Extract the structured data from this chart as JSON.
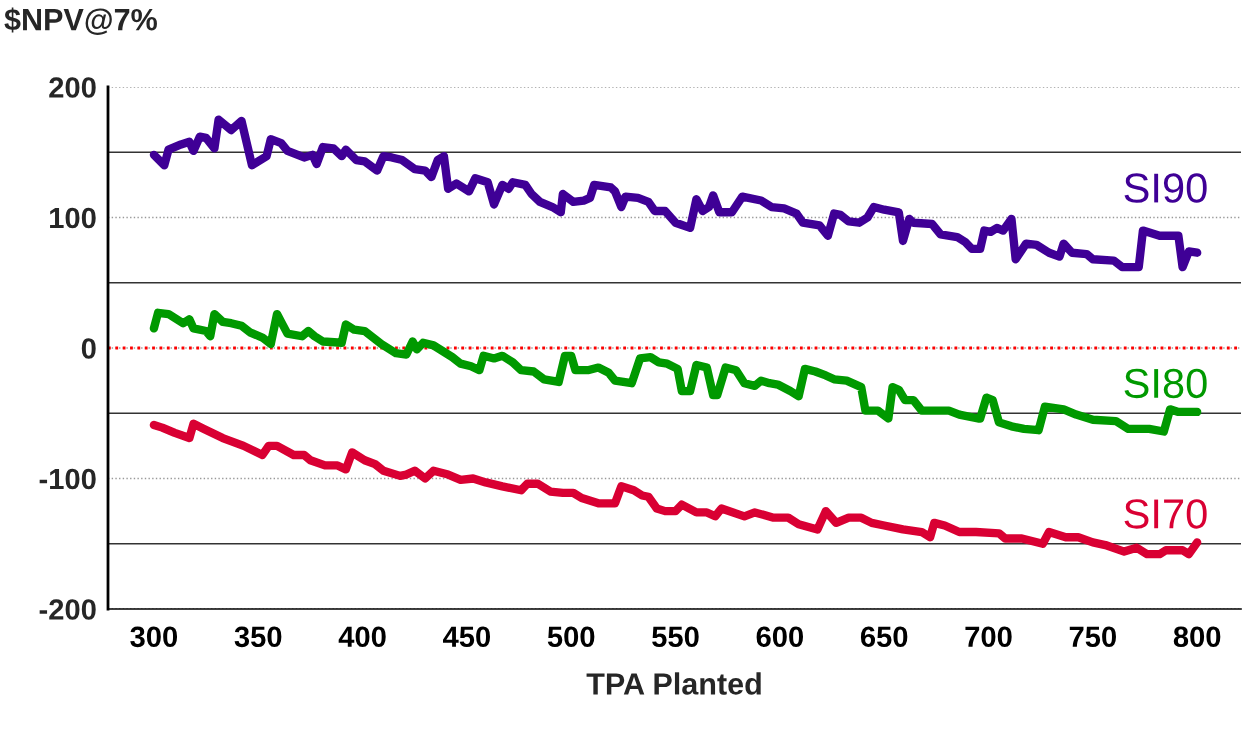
{
  "chart_data": {
    "type": "line",
    "xlabel": "TPA Planted",
    "ylabel": "$NPV@7%",
    "xlim": [
      278,
      821
    ],
    "ylim": [
      -200,
      200
    ],
    "xticks": [
      300,
      350,
      400,
      450,
      500,
      550,
      600,
      650,
      700,
      750,
      800
    ],
    "yticks": [
      -200,
      -100,
      0,
      100,
      200
    ],
    "grid": "y",
    "legend": false,
    "marker": "none",
    "line_style": "solid",
    "ref_lines": [
      {
        "axis": "y",
        "value": 150,
        "color": "#333333",
        "line_style": "solid"
      },
      {
        "axis": "y",
        "value": 50,
        "color": "#333333",
        "line_style": "solid"
      },
      {
        "axis": "y",
        "value": -50,
        "color": "#333333",
        "line_style": "solid"
      },
      {
        "axis": "y",
        "value": -150,
        "color": "#333333",
        "line_style": "solid"
      },
      {
        "axis": "y",
        "value": 0,
        "color": "#ff0000",
        "line_style": "dotted"
      }
    ],
    "series": [
      {
        "name": "SI90",
        "color": "#3f0096",
        "x": [
          300,
          305,
          307,
          313,
          317,
          319,
          322,
          325,
          329,
          331,
          337,
          342,
          347,
          354,
          356,
          361,
          364,
          372,
          376,
          378,
          381,
          386,
          390,
          392,
          397,
          401,
          407,
          410,
          414,
          419,
          425,
          430,
          433,
          436,
          439,
          441,
          445,
          451,
          454,
          460,
          463,
          467,
          470,
          472,
          478,
          481,
          485,
          491,
          495,
          496,
          501,
          506,
          509,
          511,
          519,
          521,
          524,
          526,
          532,
          537,
          540,
          545,
          550,
          557,
          560,
          563,
          566,
          568,
          571,
          577,
          582,
          591,
          596,
          602,
          608,
          611,
          619,
          623,
          626,
          629,
          633,
          638,
          642,
          645,
          650,
          657,
          659,
          662,
          664,
          673,
          677,
          685,
          689,
          692,
          696,
          698,
          701,
          704,
          707,
          711,
          713,
          718,
          723,
          729,
          734,
          736,
          740,
          747,
          750,
          760,
          764,
          772,
          774,
          782,
          791,
          793,
          796,
          800
        ],
        "values": [
          148,
          140,
          152,
          156,
          158,
          151,
          162,
          161,
          153,
          175,
          167,
          174,
          140,
          147,
          160,
          157,
          151,
          146,
          148,
          141,
          154,
          153,
          147,
          152,
          144,
          143,
          136,
          147,
          146,
          144,
          137,
          136,
          131,
          144,
          147,
          122,
          126,
          120,
          130,
          127,
          110,
          125,
          122,
          127,
          125,
          118,
          112,
          108,
          104,
          118,
          112,
          113,
          115,
          125,
          123,
          120,
          108,
          116,
          115,
          112,
          105,
          105,
          96,
          92,
          114,
          105,
          108,
          117,
          104,
          104,
          116,
          113,
          108,
          107,
          103,
          96,
          94,
          86,
          103,
          102,
          97,
          96,
          100,
          108,
          106,
          104,
          82,
          99,
          96,
          95,
          87,
          85,
          81,
          76,
          76,
          90,
          89,
          92,
          90,
          99,
          68,
          80,
          79,
          73,
          70,
          80,
          73,
          72,
          68,
          67,
          62,
          62,
          90,
          86,
          86,
          62,
          74,
          73
        ]
      },
      {
        "name": "SI80",
        "color": "#009900",
        "x": [
          300,
          302,
          307,
          314,
          317,
          319,
          325,
          327,
          329,
          333,
          337,
          342,
          346,
          352,
          356,
          359,
          361,
          364,
          371,
          374,
          377,
          381,
          390,
          392,
          396,
          401,
          409,
          416,
          421,
          424,
          426,
          429,
          434,
          443,
          447,
          452,
          456,
          458,
          463,
          467,
          472,
          476,
          482,
          487,
          494,
          497,
          500,
          502,
          508,
          513,
          518,
          521,
          529,
          533,
          538,
          542,
          546,
          551,
          553,
          557,
          560,
          565,
          568,
          570,
          574,
          579,
          583,
          588,
          591,
          595,
          599,
          605,
          609,
          612,
          617,
          622,
          626,
          632,
          639,
          641,
          647,
          652,
          654,
          657,
          660,
          664,
          668,
          681,
          686,
          695,
          696,
          699,
          702,
          705,
          711,
          717,
          724,
          727,
          736,
          742,
          750,
          761,
          767,
          777,
          784,
          787,
          791,
          800
        ],
        "values": [
          15,
          27,
          26,
          19,
          22,
          15,
          13,
          9,
          26,
          20,
          19,
          17,
          12,
          8,
          3,
          26,
          20,
          11,
          9,
          13,
          9,
          5,
          4,
          18,
          14,
          13,
          3,
          -4,
          -5,
          5,
          -1,
          4,
          2,
          -7,
          -12,
          -14,
          -17,
          -6,
          -8,
          -6,
          -11,
          -17,
          -18,
          -24,
          -26,
          -6,
          -6,
          -17,
          -17,
          -15,
          -19,
          -25,
          -27,
          -8,
          -7,
          -11,
          -12,
          -16,
          -33,
          -33,
          -13,
          -15,
          -36,
          -36,
          -15,
          -17,
          -27,
          -29,
          -25,
          -27,
          -28,
          -33,
          -37,
          -16,
          -18,
          -21,
          -24,
          -25,
          -30,
          -48,
          -48,
          -54,
          -30,
          -32,
          -40,
          -40,
          -48,
          -48,
          -51,
          -54,
          -54,
          -38,
          -40,
          -57,
          -60,
          -62,
          -63,
          -45,
          -47,
          -51,
          -55,
          -56,
          -62,
          -62,
          -64,
          -47,
          -49,
          -49
        ]
      },
      {
        "name": "SI70",
        "color": "#d90033",
        "x": [
          300,
          304,
          310,
          317,
          319,
          324,
          333,
          343,
          352,
          355,
          359,
          367,
          372,
          375,
          382,
          388,
          392,
          395,
          401,
          406,
          410,
          418,
          421,
          425,
          430,
          434,
          441,
          447,
          453,
          459,
          467,
          476,
          479,
          484,
          490,
          496,
          501,
          505,
          513,
          521,
          524,
          530,
          534,
          537,
          541,
          545,
          550,
          553,
          560,
          565,
          569,
          572,
          583,
          588,
          597,
          604,
          609,
          618,
          622,
          627,
          633,
          639,
          644,
          650,
          659,
          668,
          672,
          674,
          679,
          686,
          694,
          705,
          708,
          716,
          726,
          729,
          737,
          743,
          750,
          756,
          765,
          771,
          776,
          782,
          785,
          793,
          796,
          800
        ],
        "values": [
          -59,
          -61,
          -65,
          -69,
          -58,
          -62,
          -69,
          -75,
          -82,
          -75,
          -75,
          -82,
          -82,
          -86,
          -90,
          -90,
          -93,
          -80,
          -86,
          -89,
          -94,
          -98,
          -97,
          -94,
          -100,
          -94,
          -97,
          -101,
          -100,
          -103,
          -106,
          -109,
          -104,
          -104,
          -110,
          -111,
          -111,
          -115,
          -119,
          -119,
          -106,
          -109,
          -113,
          -114,
          -123,
          -125,
          -125,
          -120,
          -126,
          -126,
          -129,
          -123,
          -129,
          -126,
          -130,
          -130,
          -135,
          -139,
          -125,
          -134,
          -130,
          -130,
          -134,
          -136,
          -139,
          -141,
          -145,
          -134,
          -136,
          -141,
          -141,
          -142,
          -146,
          -146,
          -150,
          -141,
          -145,
          -145,
          -149,
          -151,
          -156,
          -153,
          -158,
          -158,
          -155,
          -155,
          -158,
          -149
        ]
      }
    ]
  }
}
